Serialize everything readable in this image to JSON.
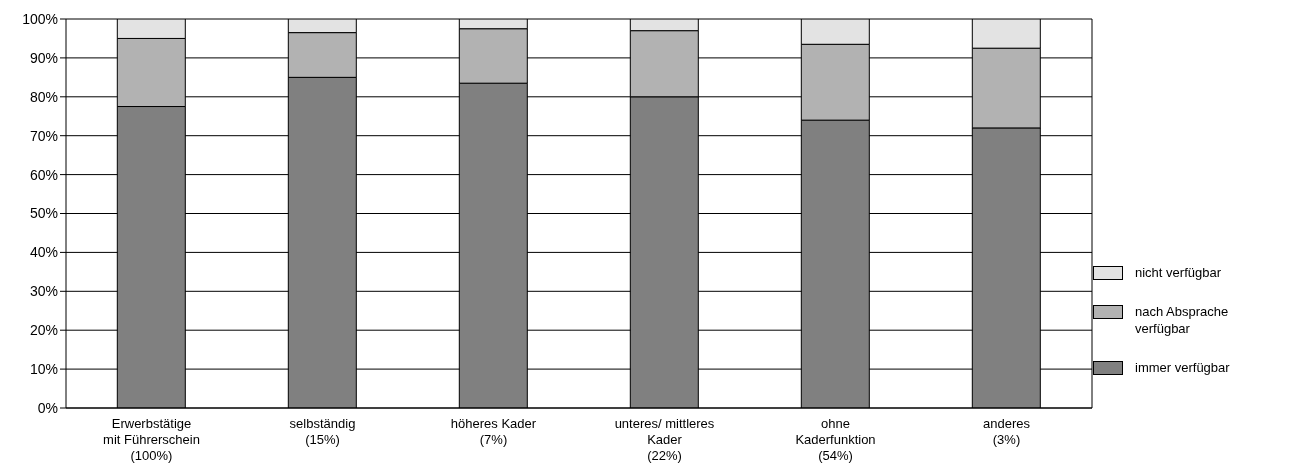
{
  "chart_data": {
    "type": "bar",
    "stacked": true,
    "categories": [
      "Erwerbstätige\nmit Führerschein\n(100%)",
      "selbständig\n(15%)",
      "höheres Kader\n(7%)",
      "unteres/ mittleres\nKader\n(22%)",
      "ohne\nKaderfunktion\n(54%)",
      "anderes\n(3%)"
    ],
    "series": [
      {
        "name": "immer verfügbar",
        "color": "#808080",
        "values": [
          77.5,
          85,
          83.5,
          80,
          74,
          72
        ]
      },
      {
        "name": "nach Absprache\nverfügbar",
        "color": "#b2b2b2",
        "values": [
          17.5,
          11.5,
          14,
          17,
          19.5,
          20.5
        ]
      },
      {
        "name": "nicht verfügbar",
        "color": "#e3e3e3",
        "values": [
          5,
          3.5,
          2.5,
          3,
          6.5,
          7.5
        ]
      }
    ],
    "ylim": [
      0,
      100
    ],
    "yticks": [
      {
        "value": 0,
        "label": "0%"
      },
      {
        "value": 10,
        "label": "10%"
      },
      {
        "value": 20,
        "label": "20%"
      },
      {
        "value": 30,
        "label": "30%"
      },
      {
        "value": 40,
        "label": "40%"
      },
      {
        "value": 50,
        "label": "50%"
      },
      {
        "value": 60,
        "label": "60%"
      },
      {
        "value": 70,
        "label": "70%"
      },
      {
        "value": 80,
        "label": "80%"
      },
      {
        "value": 90,
        "label": "90%"
      },
      {
        "value": 100,
        "label": "100%"
      }
    ],
    "grid": "y",
    "legend": "right"
  }
}
